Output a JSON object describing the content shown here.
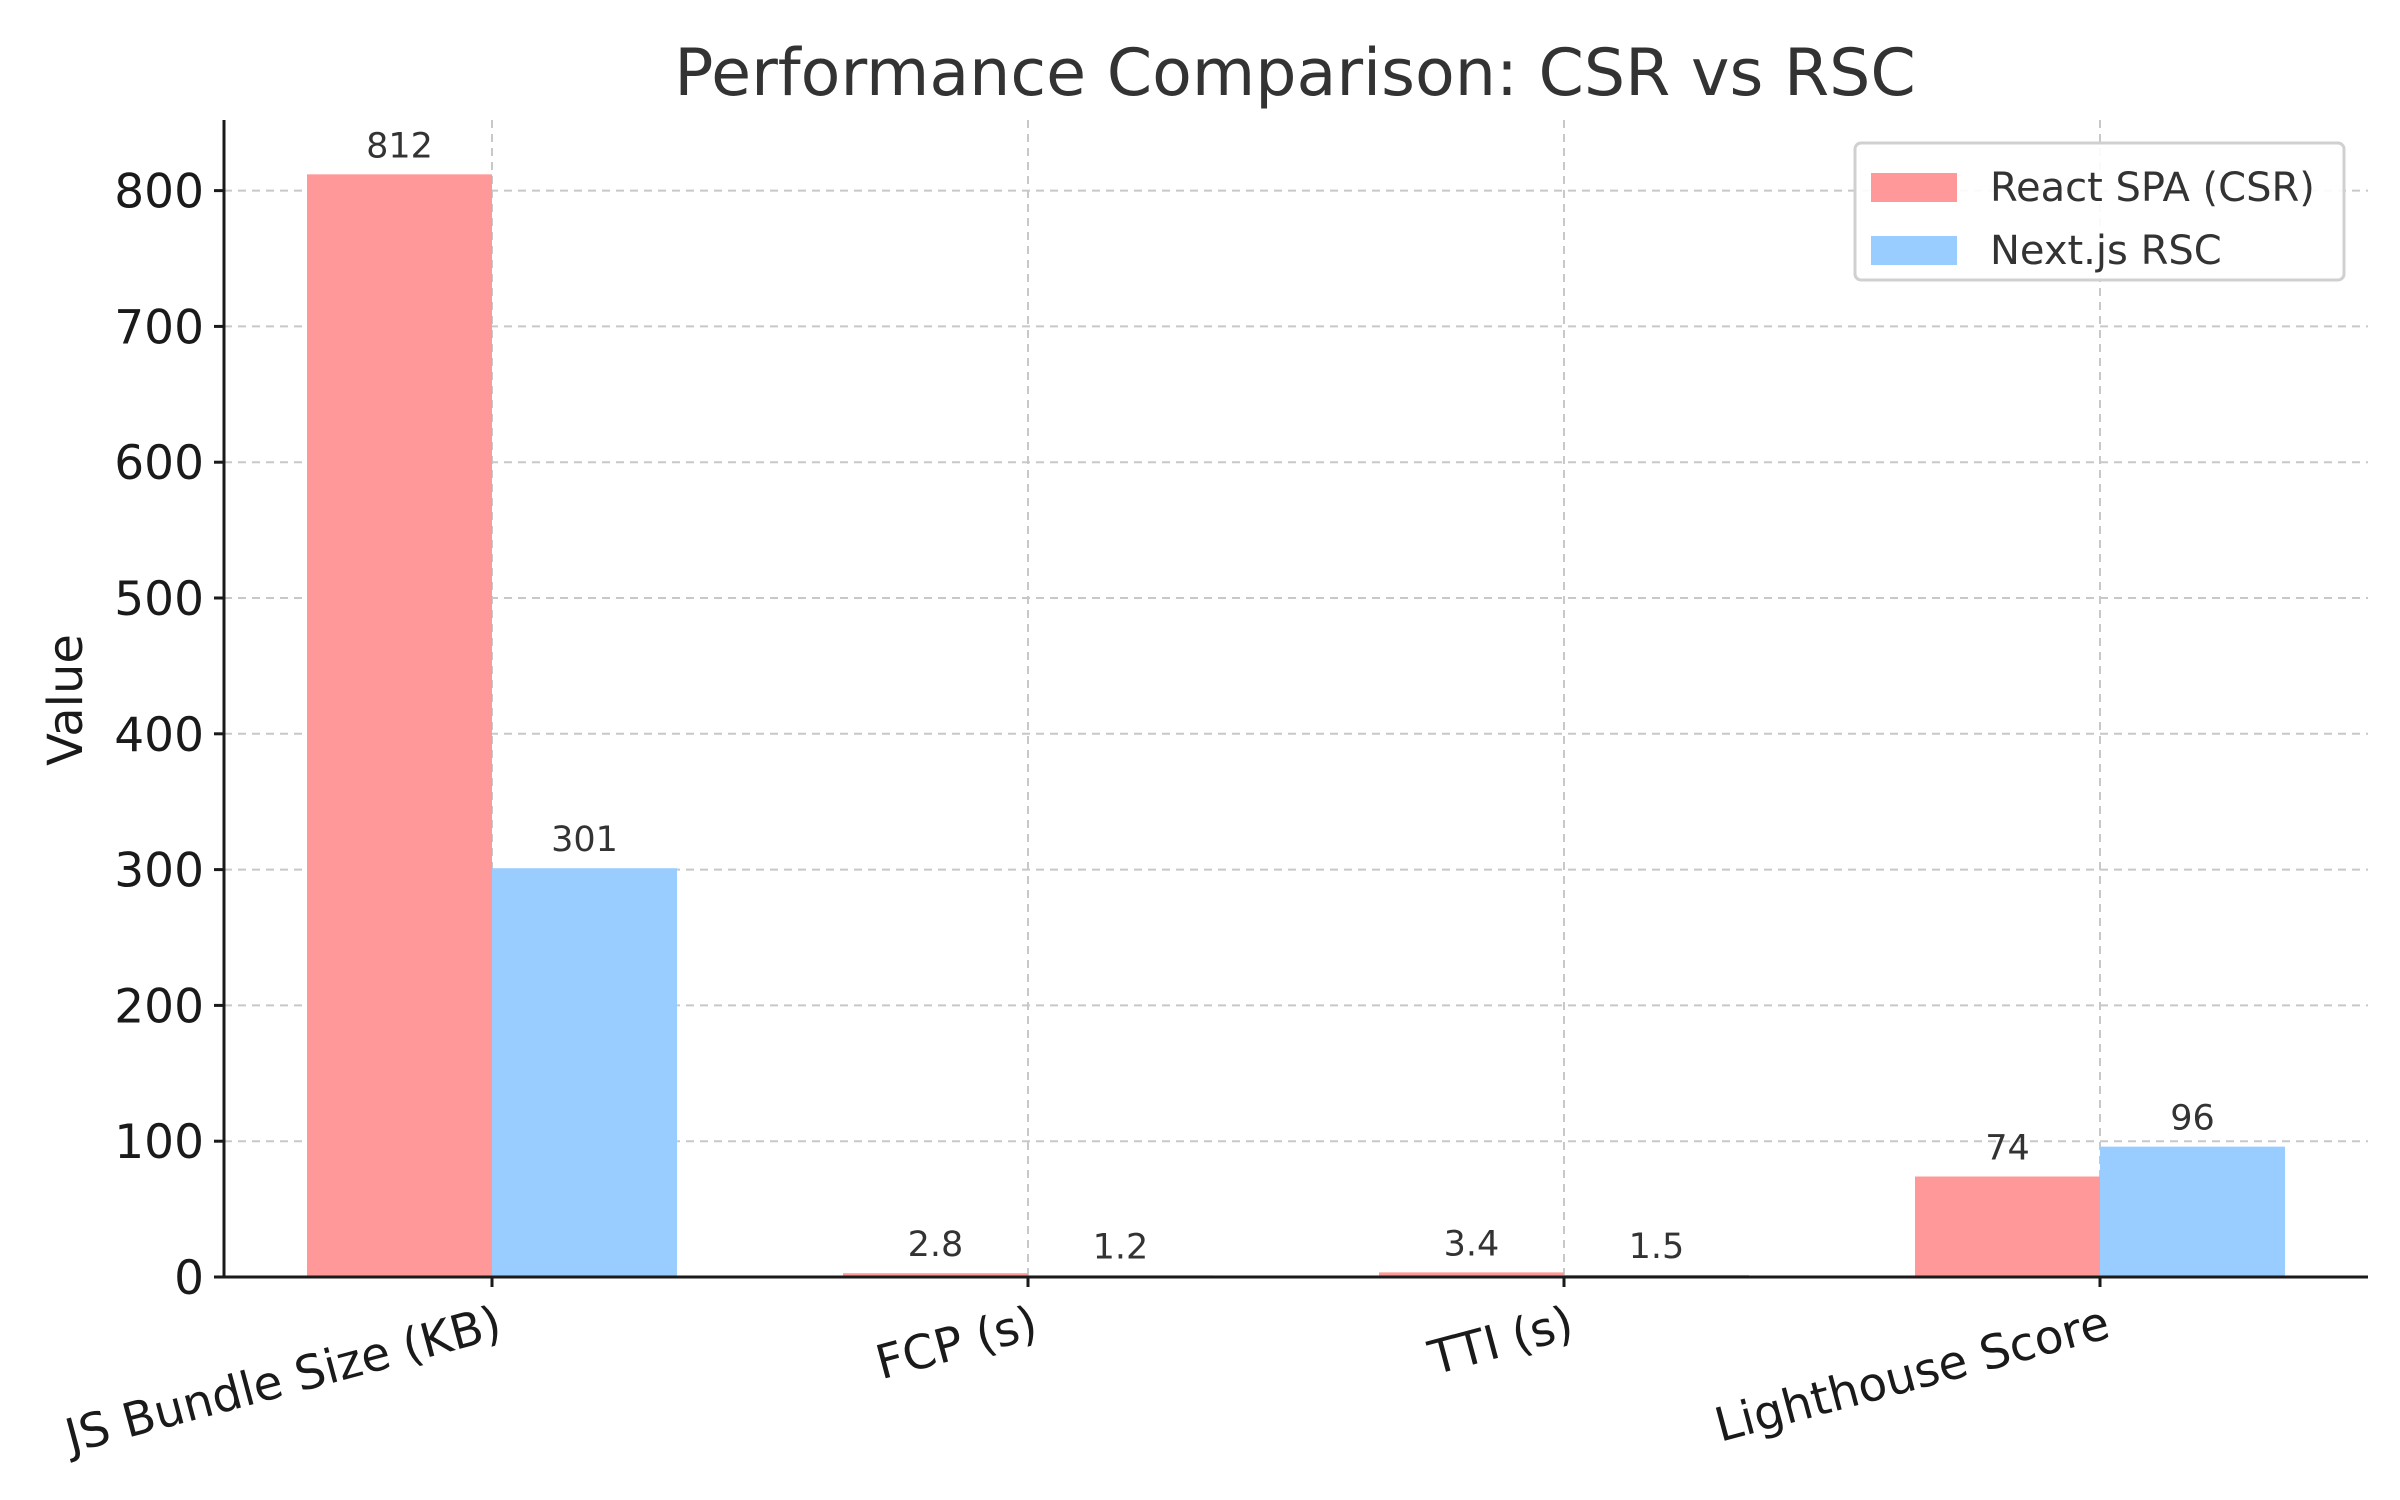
{
  "chart_data": {
    "type": "bar",
    "title": "Performance Comparison: CSR vs RSC",
    "xlabel": "",
    "ylabel": "Value",
    "categories": [
      "JS Bundle Size (KB)",
      "FCP (s)",
      "TTI (s)",
      "Lighthouse Score"
    ],
    "series": [
      {
        "name": "React SPA (CSR)",
        "values": [
          812,
          2.8,
          3.4,
          74
        ],
        "color": "#ff9999"
      },
      {
        "name": "Next.js RSC",
        "values": [
          301,
          1.2,
          1.5,
          96
        ],
        "color": "#99ccff"
      }
    ],
    "data_labels": [
      [
        "812",
        "2.8",
        "3.4",
        "74"
      ],
      [
        "301",
        "1.2",
        "1.5",
        "96"
      ]
    ],
    "ylim": [
      0,
      852
    ],
    "yticks": [
      0,
      100,
      200,
      300,
      400,
      500,
      600,
      700,
      800
    ],
    "grid": true,
    "legend_position": "top-right"
  }
}
